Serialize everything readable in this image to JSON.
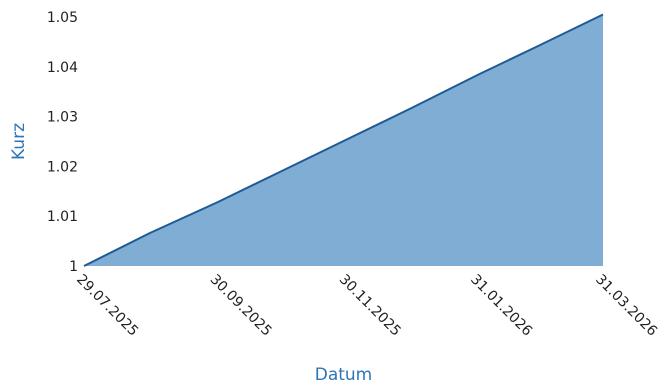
{
  "chart_data": {
    "type": "area",
    "xlabel": "Datum",
    "ylabel": "Kurz",
    "x_tick_labels": [
      "29.07.2025",
      "30.09.2025",
      "30.11.2025",
      "31.01.2026",
      "31.03.2026"
    ],
    "y_tick_labels": [
      "1",
      "1.01",
      "1.02",
      "1.03",
      "1.04",
      "1.05"
    ],
    "x": [
      "2025-07-29",
      "2025-08-29",
      "2025-09-30",
      "2025-10-31",
      "2025-11-30",
      "2025-12-31",
      "2026-01-31",
      "2026-02-28",
      "2026-03-31"
    ],
    "y": [
      1.0,
      1.0066,
      1.0128,
      1.0192,
      1.0254,
      1.0318,
      1.0384,
      1.0441,
      1.0505
    ],
    "ylim": [
      1.0,
      1.05
    ],
    "xlim": [
      "2025-07-29",
      "2026-03-31"
    ],
    "grid": false,
    "legend": "none",
    "colors": {
      "fill": "#7fadd4",
      "line": "#1f5a96",
      "axis_title": "#2e75b6"
    }
  }
}
